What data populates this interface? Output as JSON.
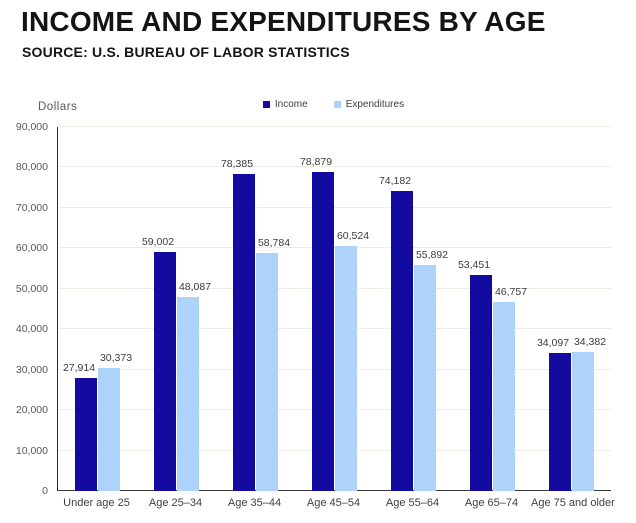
{
  "header": {
    "title": "INCOME AND EXPENDITURES BY AGE",
    "source": "SOURCE: U.S. BUREAU OF LABOR STATISTICS"
  },
  "colors": {
    "income": "#130AA0",
    "expenditures": "#AED3FB",
    "gridline": "#EFECE4",
    "axis": "#3A3A3A",
    "tick_text": "#595959",
    "label_text": "#3C3C3C"
  },
  "chart_data": {
    "type": "bar",
    "title": "INCOME AND EXPENDITURES BY AGE",
    "subtitle": "SOURCE: U.S. BUREAU OF LABOR STATISTICS",
    "ylabel": "Dollars",
    "xlabel": "",
    "ylim": [
      0,
      90000
    ],
    "yticks": [
      0,
      10000,
      20000,
      30000,
      40000,
      50000,
      60000,
      70000,
      80000,
      90000
    ],
    "grid": true,
    "legend_position": "top-center",
    "categories": [
      "Under age 25",
      "Age 25–34",
      "Age 35–44",
      "Age 45–54",
      "Age 55–64",
      "Age 65–74",
      "Age 75 and older"
    ],
    "series": [
      {
        "name": "Income",
        "color": "#130AA0",
        "values": [
          27914,
          59002,
          78385,
          78879,
          74182,
          53451,
          34097
        ]
      },
      {
        "name": "Expenditures",
        "color": "#AED3FB",
        "values": [
          30373,
          48087,
          58784,
          60524,
          55892,
          46757,
          34382
        ]
      }
    ]
  }
}
